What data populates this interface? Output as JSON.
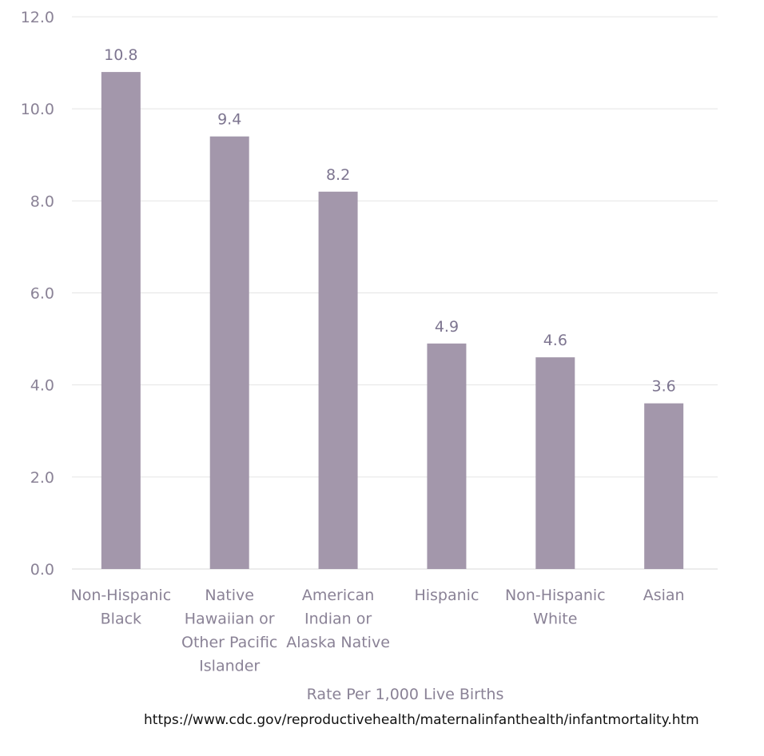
{
  "chart_data": {
    "type": "bar",
    "categories": [
      [
        "Non-Hispanic",
        "Black"
      ],
      [
        "Native",
        "Hawaiian or",
        "Other Pacific",
        "Islander"
      ],
      [
        "American",
        "Indian or",
        "Alaska Native"
      ],
      [
        "Hispanic"
      ],
      [
        "Non-Hispanic",
        "White"
      ],
      [
        "Asian"
      ]
    ],
    "values": [
      10.8,
      9.4,
      8.2,
      4.9,
      4.6,
      3.6
    ],
    "data_labels": [
      "10.8",
      "9.4",
      "8.2",
      "4.9",
      "4.6",
      "3.6"
    ],
    "title": "",
    "xlabel": "Rate Per 1,000 Live Births",
    "ylabel": "",
    "ylim": [
      0,
      12
    ],
    "yticks": [
      0,
      2,
      4,
      6,
      8,
      10,
      12
    ],
    "ytick_labels": [
      "0.0",
      "2.0",
      "4.0",
      "6.0",
      "8.0",
      "10.0",
      "12.0"
    ],
    "grid": true,
    "legend": "none",
    "colors": {
      "bar": "#a397ab",
      "grid": "#e4e4e4"
    }
  },
  "source_note": "https://www.cdc.gov/reproductivehealth/maternalinfanthealth/infantmortality.htm"
}
